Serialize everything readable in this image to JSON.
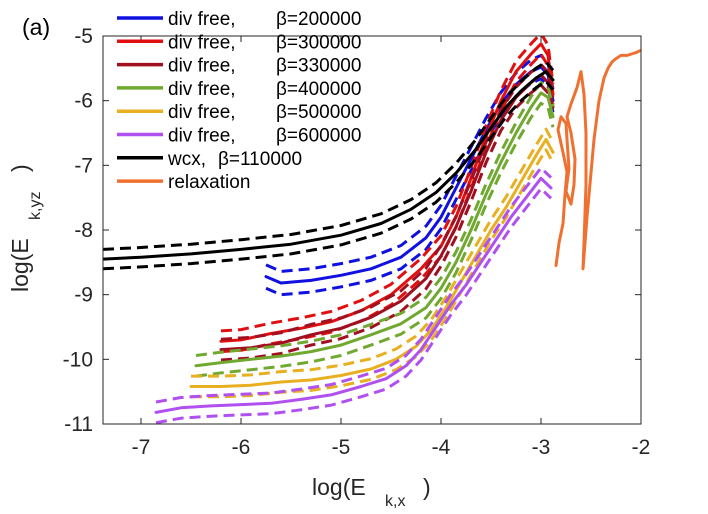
{
  "chart_data": {
    "type": "line",
    "panel_label": "(a)",
    "xlabel_main": "log(E",
    "xlabel_sub": "k,x",
    "xlabel_close": ")",
    "ylabel_main": "log(E",
    "ylabel_sub": "k,yz",
    "ylabel_close": ")",
    "xlim": [
      -7.38,
      -2.0
    ],
    "ylim": [
      -11.0,
      -5.0
    ],
    "xticks": [
      -7,
      -6,
      -5,
      -4,
      -3,
      -2
    ],
    "yticks": [
      -11,
      -10,
      -9,
      -8,
      -7,
      -6,
      -5
    ],
    "xtick_labels": [
      "-7",
      "-6",
      "-5",
      "-4",
      "-3",
      "-2"
    ],
    "ytick_labels": [
      "-11",
      "-10",
      "-9",
      "-8",
      "-7",
      "-6",
      "-5"
    ],
    "series": [
      {
        "name": "div free, β=200000",
        "label_main": "div free,",
        "label_param": "β=200000",
        "color": "#1010e0",
        "dashed": true,
        "band": 0.18,
        "x": [
          -5.75,
          -5.6,
          -5.3,
          -5.0,
          -4.7,
          -4.4,
          -4.15,
          -4.0,
          -3.85,
          -3.7,
          -3.55,
          -3.4,
          -3.25,
          -3.1,
          -3.0,
          -2.93,
          -2.88
        ],
        "y": [
          -8.72,
          -8.82,
          -8.78,
          -8.7,
          -8.6,
          -8.42,
          -8.12,
          -7.8,
          -7.35,
          -6.9,
          -6.45,
          -6.05,
          -5.75,
          -5.55,
          -5.48,
          -5.6,
          -6.0
        ]
      },
      {
        "name": "div free, β=300000",
        "label_main": "div free,",
        "label_param": "β=300000",
        "color": "#e01010",
        "dashed": true,
        "band": 0.16,
        "x": [
          -6.2,
          -6.0,
          -5.7,
          -5.4,
          -5.1,
          -4.8,
          -4.5,
          -4.2,
          -4.0,
          -3.85,
          -3.7,
          -3.55,
          -3.4,
          -3.25,
          -3.1,
          -3.0,
          -2.93,
          -2.88
        ],
        "y": [
          -9.72,
          -9.7,
          -9.6,
          -9.52,
          -9.42,
          -9.25,
          -9.0,
          -8.6,
          -8.25,
          -7.8,
          -7.2,
          -6.55,
          -6.0,
          -5.55,
          -5.28,
          -5.12,
          -5.3,
          -5.9
        ]
      },
      {
        "name": "div free, β=330000",
        "label_main": "div free,",
        "label_param": "β=330000",
        "color": "#a01020",
        "dashed": true,
        "band": 0.16,
        "x": [
          -6.2,
          -5.9,
          -5.6,
          -5.3,
          -5.0,
          -4.7,
          -4.4,
          -4.15,
          -4.0,
          -3.85,
          -3.7,
          -3.55,
          -3.4,
          -3.25,
          -3.1,
          -3.0,
          -2.93,
          -2.88
        ],
        "y": [
          -9.85,
          -9.82,
          -9.75,
          -9.62,
          -9.52,
          -9.35,
          -9.1,
          -8.75,
          -8.4,
          -7.95,
          -7.4,
          -6.8,
          -6.3,
          -5.95,
          -5.72,
          -5.6,
          -5.72,
          -6.1
        ]
      },
      {
        "name": "div free, β=400000",
        "label_main": "div free,",
        "label_param": "β=400000",
        "color": "#70a830",
        "dashed": true,
        "band": 0.16,
        "x": [
          -6.45,
          -6.2,
          -5.9,
          -5.6,
          -5.3,
          -5.0,
          -4.7,
          -4.4,
          -4.15,
          -4.0,
          -3.85,
          -3.7,
          -3.55,
          -3.4,
          -3.25,
          -3.1,
          -3.0,
          -2.93,
          -2.88
        ],
        "y": [
          -10.1,
          -10.05,
          -10.0,
          -9.95,
          -9.88,
          -9.78,
          -9.62,
          -9.45,
          -9.2,
          -8.9,
          -8.5,
          -8.0,
          -7.45,
          -6.95,
          -6.5,
          -6.1,
          -5.88,
          -5.95,
          -6.25
        ]
      },
      {
        "name": "div free, β=500000",
        "label_main": "div free,",
        "label_param": "β=500000",
        "color": "#e8b020",
        "dashed": true,
        "band": 0.16,
        "x": [
          -6.5,
          -6.2,
          -5.9,
          -5.6,
          -5.3,
          -5.0,
          -4.7,
          -4.45,
          -4.25,
          -4.1,
          -3.95,
          -3.8,
          -3.65,
          -3.5,
          -3.35,
          -3.2,
          -3.05,
          -2.95,
          -2.88
        ],
        "y": [
          -10.42,
          -10.42,
          -10.4,
          -10.35,
          -10.32,
          -10.25,
          -10.15,
          -10.0,
          -9.8,
          -9.55,
          -9.2,
          -8.8,
          -8.4,
          -8.0,
          -7.65,
          -7.25,
          -6.85,
          -6.6,
          -6.8
        ]
      },
      {
        "name": "div free, β=600000",
        "label_main": "div free,",
        "label_param": "β=600000",
        "color": "#b050f0",
        "dashed": true,
        "band": 0.16,
        "x": [
          -6.85,
          -6.6,
          -6.3,
          -6.0,
          -5.7,
          -5.4,
          -5.1,
          -4.8,
          -4.55,
          -4.35,
          -4.2,
          -4.05,
          -3.9,
          -3.75,
          -3.6,
          -3.45,
          -3.3,
          -3.15,
          -3.0,
          -2.9
        ],
        "y": [
          -10.82,
          -10.75,
          -10.72,
          -10.7,
          -10.68,
          -10.62,
          -10.55,
          -10.42,
          -10.3,
          -10.1,
          -9.85,
          -9.5,
          -9.15,
          -8.85,
          -8.5,
          -8.15,
          -7.8,
          -7.5,
          -7.2,
          -7.35
        ]
      },
      {
        "name": "wcx, β=110000",
        "label_main": "wcx,",
        "label_param": "β=110000",
        "color": "#000000",
        "dashed": true,
        "band": 0.15,
        "x": [
          -7.38,
          -7.0,
          -6.5,
          -6.0,
          -5.5,
          -5.0,
          -4.6,
          -4.3,
          -4.05,
          -3.85,
          -3.65,
          -3.5,
          -3.35,
          -3.2,
          -3.05,
          -2.95,
          -2.88
        ],
        "y": [
          -8.45,
          -8.42,
          -8.37,
          -8.3,
          -8.22,
          -8.08,
          -7.9,
          -7.68,
          -7.42,
          -7.12,
          -6.75,
          -6.42,
          -6.1,
          -5.85,
          -5.65,
          -5.55,
          -5.68
        ]
      },
      {
        "name": "relaxation",
        "label_main": "relaxation",
        "label_param": "",
        "color": "#f07030",
        "dashed": false,
        "band": 0,
        "x": [
          -2.85,
          -2.82,
          -2.78,
          -2.76,
          -2.74,
          -2.78,
          -2.83,
          -2.8,
          -2.75,
          -2.74,
          -2.72,
          -2.75,
          -2.7,
          -2.67,
          -2.66,
          -2.7,
          -2.74,
          -2.7,
          -2.64,
          -2.6,
          -2.57,
          -2.55,
          -2.55,
          -2.57,
          -2.58,
          -2.54,
          -2.47,
          -2.42,
          -2.37,
          -2.33,
          -2.29,
          -2.25,
          -2.2,
          -2.14,
          -2.08,
          -2.04,
          -2.0
        ],
        "y": [
          -8.55,
          -8.2,
          -7.9,
          -7.45,
          -7.1,
          -6.8,
          -6.45,
          -6.25,
          -6.35,
          -6.6,
          -7.05,
          -7.4,
          -7.6,
          -7.3,
          -6.9,
          -6.5,
          -6.25,
          -6.05,
          -5.8,
          -5.55,
          -5.9,
          -6.5,
          -7.3,
          -8.2,
          -8.6,
          -7.8,
          -6.6,
          -6.0,
          -5.65,
          -5.5,
          -5.4,
          -5.35,
          -5.3,
          -5.3,
          -5.27,
          -5.25,
          -5.22
        ]
      }
    ]
  }
}
